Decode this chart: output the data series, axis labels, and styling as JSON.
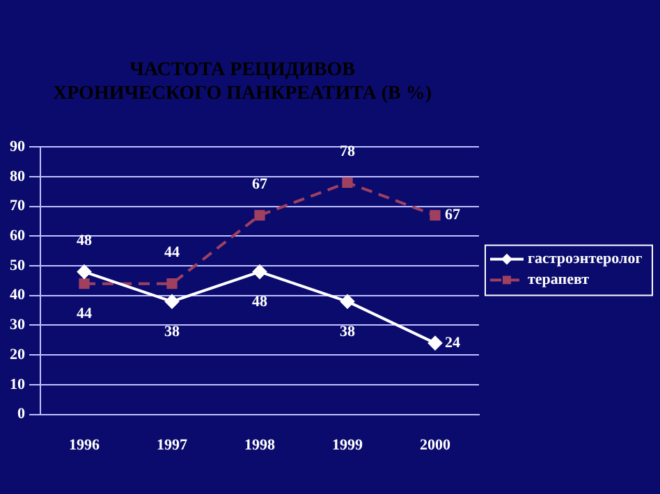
{
  "chart_data": {
    "type": "line",
    "title": "ЧАСТОТА РЕЦИДИВОВ ХРОНИЧЕСКОГО ПАНКРЕАТИТА (В %)",
    "categories": [
      "1996",
      "1997",
      "1998",
      "1999",
      "2000"
    ],
    "series": [
      {
        "name": "гастроэнтеролог",
        "color": "#ffffff",
        "values": [
          48,
          38,
          48,
          38,
          24
        ],
        "marker": "diamond",
        "line_style": "solid"
      },
      {
        "name": "терапевт",
        "color": "#a04060",
        "values": [
          44,
          44,
          67,
          78,
          67
        ],
        "marker": "square",
        "line_style": "dashed"
      }
    ],
    "ylim": [
      0,
      90
    ],
    "yticks": [
      0,
      10,
      20,
      30,
      40,
      50,
      60,
      70,
      80,
      90
    ],
    "grid": "y",
    "legend": "right",
    "data_labels": true
  }
}
